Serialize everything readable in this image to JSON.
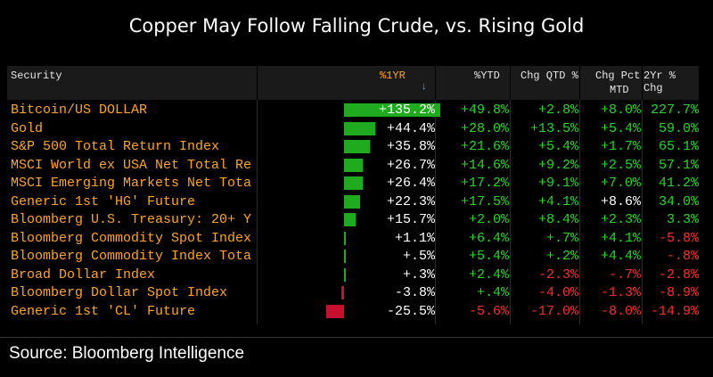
{
  "title": "Copper May Follow Falling Crude, vs. Rising Gold",
  "source": "Source: Bloomberg Intelligence",
  "header": {
    "security": "Security",
    "pct1yr": "%1YR",
    "sort_icon": "arrow-down-icon",
    "pctytd": "%YTD",
    "chgqtd": "Chg QTD %",
    "chgpct_l1": "Chg Pct",
    "chgpct_l2": "MTD",
    "yr2": "2Yr % Chg"
  },
  "colors": {
    "name": "#ffa421",
    "positive": "#22d922",
    "negative": "#ff2a2a",
    "neutral": "#ffffff",
    "bar_pos": "#1faa1f",
    "bar_neg": "#c8102e"
  },
  "rows": [
    {
      "name": "Bitcoin/US DOLLAR",
      "bar": 135.2,
      "y1": "+135.2%",
      "ytd": "+49.8%",
      "qtd": "+2.8%",
      "mtd": "+8.0%",
      "yr2": "227.7%"
    },
    {
      "name": "Gold",
      "bar": 44.4,
      "y1": "+44.4%",
      "ytd": "+28.0%",
      "qtd": "+13.5%",
      "mtd": "+5.4%",
      "yr2": "59.0%"
    },
    {
      "name": "S&P 500 Total Return Index",
      "bar": 35.8,
      "y1": "+35.8%",
      "ytd": "+21.6%",
      "qtd": "+5.4%",
      "mtd": "+1.7%",
      "yr2": "65.1%"
    },
    {
      "name": "MSCI World ex USA Net Total Re",
      "bar": 26.7,
      "y1": "+26.7%",
      "ytd": "+14.6%",
      "qtd": "+9.2%",
      "mtd": "+2.5%",
      "yr2": "57.1%"
    },
    {
      "name": "MSCI Emerging Markets Net Tota",
      "bar": 26.4,
      "y1": "+26.4%",
      "ytd": "+17.2%",
      "qtd": "+9.1%",
      "mtd": "+7.0%",
      "yr2": "41.2%"
    },
    {
      "name": "Generic 1st 'HG' Future",
      "bar": 22.3,
      "y1": "+22.3%",
      "ytd": "+17.5%",
      "qtd": "+4.1%",
      "mtd": "+8.6%",
      "yr2": "34.0%"
    },
    {
      "name": "Bloomberg U.S. Treasury: 20+ Y",
      "bar": 15.7,
      "y1": "+15.7%",
      "ytd": "+2.0%",
      "qtd": "+8.4%",
      "mtd": "+2.3%",
      "yr2": "3.3%"
    },
    {
      "name": "Bloomberg Commodity Spot Index",
      "bar": 1.1,
      "y1": "+1.1%",
      "ytd": "+6.4%",
      "qtd": "+.7%",
      "mtd": "+4.1%",
      "yr2": "-5.8%"
    },
    {
      "name": "Bloomberg Commodity Index Tota",
      "bar": 0.5,
      "y1": "+.5%",
      "ytd": "+5.4%",
      "qtd": "+.2%",
      "mtd": "+4.4%",
      "yr2": "-.8%"
    },
    {
      "name": "Broad Dollar Index",
      "bar": 0.3,
      "y1": "+.3%",
      "ytd": "+2.4%",
      "qtd": "-2.3%",
      "mtd": "-.7%",
      "yr2": "-2.8%"
    },
    {
      "name": "Bloomberg Dollar Spot Index",
      "bar": -3.8,
      "y1": "-3.8%",
      "ytd": "+.4%",
      "qtd": "-4.0%",
      "mtd": "-1.3%",
      "yr2": "-8.9%"
    },
    {
      "name": "Generic 1st 'CL' Future",
      "bar": -25.5,
      "y1": "-25.5%",
      "ytd": "-5.6%",
      "qtd": "-17.0%",
      "mtd": "-8.0%",
      "yr2": "-14.9%"
    }
  ]
}
